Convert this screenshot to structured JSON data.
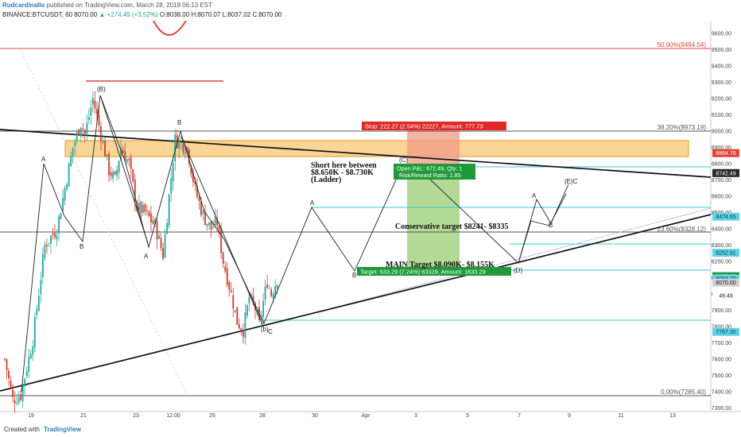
{
  "header": {
    "author": "Rudcardinallo",
    "published": "published on TradingView.com, March 28, 2018 06:13 EST",
    "symbol": "BINANCE:BTCUSDT, 60",
    "last": "8070.00",
    "change": "▲ +274.49 (+3.52%)",
    "o": "O:8038.00",
    "h": "H:8070.07",
    "l": "L:8037.02",
    "c": "C:8070.00"
  },
  "footer": {
    "created": "Created with",
    "brand": "TradingView"
  },
  "chart_data": {
    "type": "candlestick",
    "ylim": [
      7200,
      9700
    ],
    "y_ticks": [
      7300,
      7400,
      7500,
      7600,
      7700,
      7800,
      7900,
      8000,
      8100,
      8200,
      8300,
      8400,
      8500,
      8600,
      8700,
      8800,
      8900,
      9000,
      9100,
      9200,
      9300,
      9400,
      9500,
      9600
    ],
    "x_ticks": [
      "19",
      "21",
      "23",
      "12:00",
      "26",
      "28",
      "30",
      "Apr",
      "3",
      "5",
      "7",
      "9",
      "11",
      "13"
    ],
    "candle_path": [
      [
        0,
        7600
      ],
      [
        4,
        7350
      ],
      [
        8,
        7380
      ],
      [
        14,
        7720
      ],
      [
        20,
        8300
      ],
      [
        26,
        8400
      ],
      [
        34,
        8900
      ],
      [
        38,
        9050
      ],
      [
        40,
        8980
      ],
      [
        44,
        9200
      ],
      [
        48,
        8980
      ],
      [
        52,
        8760
      ],
      [
        55,
        8700
      ],
      [
        58,
        8900
      ],
      [
        62,
        8800
      ],
      [
        66,
        8530
      ],
      [
        70,
        8500
      ],
      [
        75,
        8420
      ],
      [
        79,
        8240
      ],
      [
        82,
        8600
      ],
      [
        85,
        8950
      ],
      [
        88,
        8920
      ],
      [
        91,
        8900
      ],
      [
        95,
        8640
      ],
      [
        99,
        8480
      ],
      [
        103,
        8400
      ],
      [
        106,
        8440
      ],
      [
        109,
        8200
      ],
      [
        113,
        8000
      ],
      [
        116,
        7830
      ],
      [
        119,
        7780
      ],
      [
        122,
        7980
      ],
      [
        125,
        7910
      ],
      [
        127,
        7810
      ],
      [
        129,
        7950
      ],
      [
        131,
        8080
      ],
      [
        133,
        8000
      ],
      [
        136,
        8095
      ]
    ],
    "fib_levels": [
      {
        "label": "50.00%(9494.54)",
        "value": 9494.54,
        "color": "#e0443a"
      },
      {
        "label": "38.20%(8973.19)",
        "value": 8973.19,
        "color": "#555555"
      },
      {
        "label": "23.60%(8328.12)",
        "value": 8328.12,
        "color": "#555555"
      },
      {
        "label": "0.00%(7285.40)",
        "value": 7285.4,
        "color": "#555555"
      }
    ],
    "price_tags": [
      {
        "label": "8864.76",
        "value": 8864.76,
        "bg": "#e0443a",
        "fg": "#ffffff"
      },
      {
        "label": "8742.11",
        "value": 8742.11,
        "bg": "#5fd3e6",
        "fg": "#0b3b45"
      },
      {
        "label": "8742.49",
        "value": 8742.49,
        "bg": "#2a2a2a",
        "fg": "#ffffff"
      },
      {
        "label": "8474.65",
        "value": 8474.65,
        "bg": "#5fd3e6",
        "fg": "#0b3b45"
      },
      {
        "label": "8252.91",
        "value": 8252.91,
        "bg": "#5fd3e6",
        "fg": "#0b3b45"
      },
      {
        "label": "8109.20",
        "value": 8109.2,
        "bg": "#1f9a3a",
        "fg": "#ffffff"
      },
      {
        "label": "8094.70",
        "value": 8094.7,
        "bg": "#5fd3e6",
        "fg": "#0b3b45"
      },
      {
        "label": "8070.00",
        "value": 8070.0,
        "bg": "#cfcfcf",
        "fg": "#222222"
      },
      {
        "label": "46:49",
        "value": 7990,
        "bg": "#ffffff",
        "fg": "#222222"
      },
      {
        "label": "7767.30",
        "value": 7767.3,
        "bg": "#5fd3e6",
        "fg": "#0b3b45"
      }
    ],
    "wave_labels": [
      {
        "text": "(B)"
      },
      {
        "text": "A"
      },
      {
        "text": "B"
      },
      {
        "text": "A"
      },
      {
        "text": "B"
      },
      {
        "text": "A"
      },
      {
        "text": "B"
      },
      {
        "text": "(C)"
      },
      {
        "text": "(D)"
      },
      {
        "text": "A"
      },
      {
        "text": "B"
      },
      {
        "text": "(E)C"
      },
      {
        "text": "(b)"
      },
      {
        "text": "C"
      }
    ],
    "annotations": {
      "stop_box": "Stop: 222.27 (2.54%) 22227, Amount: 777.73",
      "pnl_box_1": "Open P&L: 672.49, Qty: 1",
      "pnl_box_2": "Risk/Reward Ratio: 2.85",
      "target_box": "Target: 633.29 (7.24%) 63329, Amount: 1633.29",
      "short_1": "Short here between",
      "short_2": "$8.650K - $8.730K",
      "short_3": "(Ladder)",
      "conservative": "Conservative target $8241- $8335",
      "main_target": "MAIN Target $8.090K- $8.155K"
    },
    "colors": {
      "up": "#26a69a",
      "down": "#cf3a2c",
      "supply_zone": "#f5b342",
      "cyan": "#38c8dc",
      "stop_zone": "#f29a85",
      "target_zone": "#9fd07b"
    }
  }
}
